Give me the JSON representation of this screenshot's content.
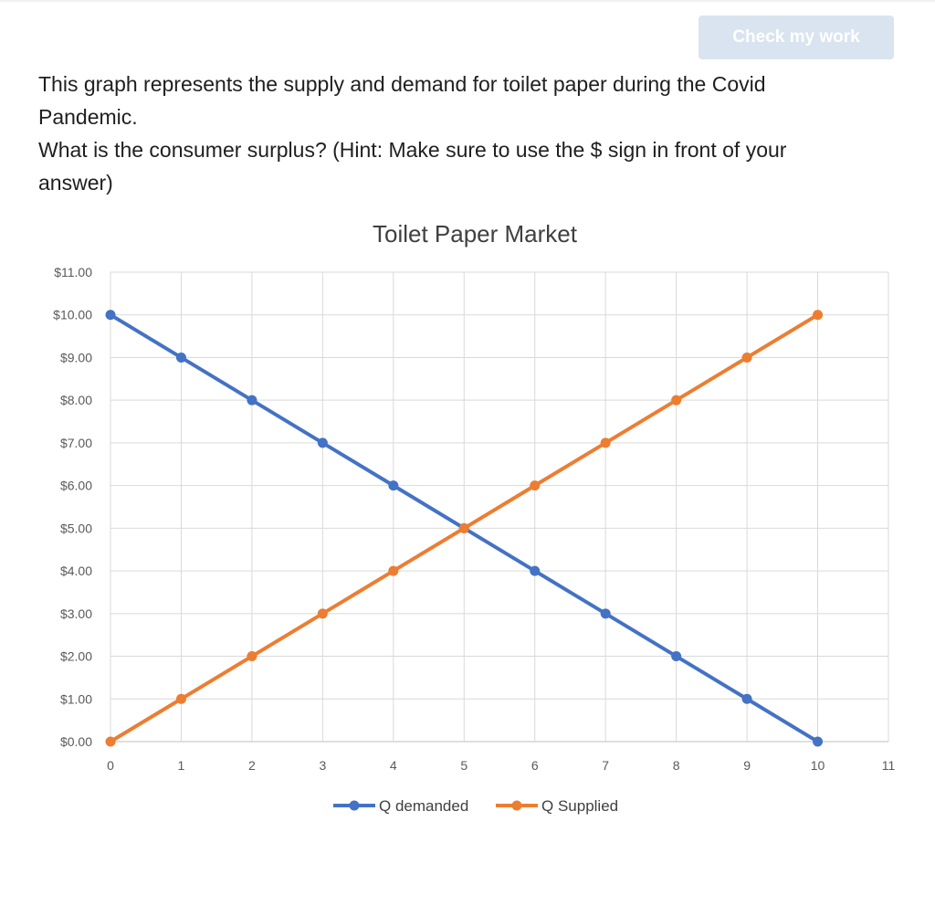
{
  "header": {
    "check_label": "Check my work"
  },
  "question": {
    "line1": "This graph represents the supply and demand for toilet paper during the Covid Pandemic.",
    "line2": "What is the consumer surplus? (Hint: Make sure to use the $ sign in front of your answer)"
  },
  "chart_data": {
    "type": "line",
    "title": "Toilet Paper Market",
    "x": [
      0,
      1,
      2,
      3,
      4,
      5,
      6,
      7,
      8,
      9,
      10
    ],
    "xticks": [
      "0",
      "1",
      "2",
      "3",
      "4",
      "5",
      "6",
      "7",
      "8",
      "9",
      "10",
      "11"
    ],
    "yticks": [
      "$0.00",
      "$1.00",
      "$2.00",
      "$3.00",
      "$4.00",
      "$5.00",
      "$6.00",
      "$7.00",
      "$8.00",
      "$9.00",
      "$10.00",
      "$11.00"
    ],
    "xlim": [
      0,
      11
    ],
    "ylim": [
      0,
      11
    ],
    "grid": true,
    "legend": "bottom",
    "series": [
      {
        "name": "Q demanded",
        "color": "#4472c4",
        "values": [
          10,
          9,
          8,
          7,
          6,
          5,
          4,
          3,
          2,
          1,
          0
        ]
      },
      {
        "name": "Q Supplied",
        "color": "#ed7d31",
        "values": [
          0,
          1,
          2,
          3,
          4,
          5,
          6,
          7,
          8,
          9,
          10
        ]
      }
    ]
  }
}
